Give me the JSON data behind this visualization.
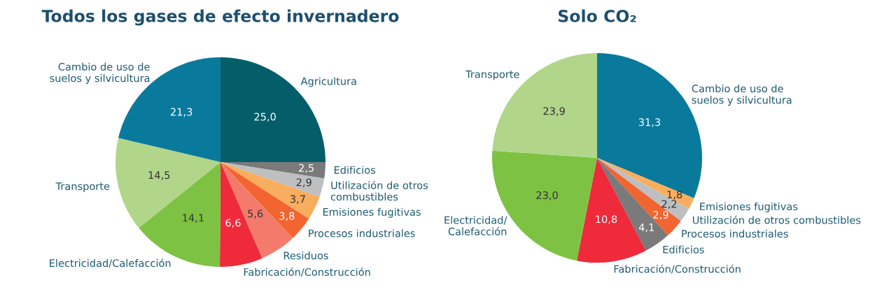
{
  "chart_data": [
    {
      "type": "pie",
      "title": "Todos los gases de efecto invernadero",
      "categories": [
        "Agricultura",
        "Edificios",
        "Utilización de otros\ncombustibles",
        "Emisiones fugitivas",
        "Procesos industriales",
        "Residuos",
        "Fabricación/Construcción",
        "Electricidad/Calefacción",
        "Transporte",
        "Cambio de uso de\nsuelos y silvicultura"
      ],
      "values": [
        25.0,
        2.5,
        2.9,
        3.7,
        3.8,
        5.6,
        6.6,
        14.1,
        14.5,
        21.3
      ],
      "value_labels": [
        "25,0",
        "2,5",
        "2,9",
        "3,7",
        "3,8",
        "5,6",
        "6,6",
        "14,1",
        "14,5",
        "21,3"
      ],
      "colors": [
        "#045e6a",
        "#7a7a7a",
        "#bdbfc1",
        "#f9ad5f",
        "#f26430",
        "#f47b6c",
        "#ee2a3b",
        "#7dc242",
        "#b1d68a",
        "#0a7a9c"
      ]
    },
    {
      "type": "pie",
      "title": "Solo CO₂",
      "categories": [
        "Cambio de uso de\nsuelos y silvicultura",
        "Emisiones fugitivas",
        "Utilización de otros combustibles",
        "Procesos industriales",
        "Edificios",
        "Fabricación/Construcción",
        "Electricidad/\nCalefacción",
        "Transporte"
      ],
      "values": [
        31.3,
        1.8,
        2.2,
        2.9,
        4.1,
        10.8,
        23.0,
        23.9
      ],
      "value_labels": [
        "31,3",
        "1,8",
        "2,2",
        "2,9",
        "4,1",
        "10,8",
        "23,0",
        "23,9"
      ],
      "colors": [
        "#0a7a9c",
        "#f9ad5f",
        "#bdbfc1",
        "#f26430",
        "#7a7a7a",
        "#ee2a3b",
        "#7dc242",
        "#b1d68a"
      ]
    }
  ]
}
